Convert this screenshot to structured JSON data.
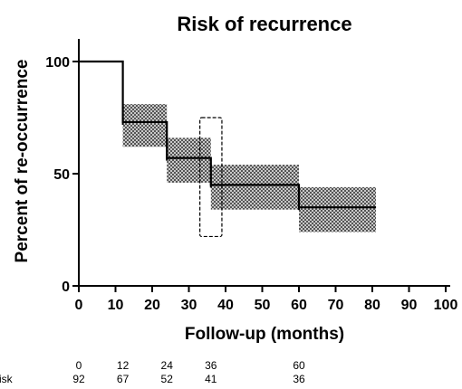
{
  "chart_data": {
    "type": "line",
    "title": "Risk of recurrence",
    "xlabel": "Follow-up (months)",
    "ylabel": "Percent of re-occurrence",
    "xlim": [
      0,
      100
    ],
    "ylim": [
      0,
      100
    ],
    "x_ticks": [
      0,
      10,
      20,
      30,
      40,
      50,
      60,
      70,
      80,
      90,
      100
    ],
    "y_ticks": [
      0,
      50,
      100
    ],
    "grid": false,
    "series": [
      {
        "style": "step",
        "color": "#000000",
        "steps": [
          {
            "x_start": 0,
            "x_end": 12,
            "y": 100
          },
          {
            "x_start": 12,
            "x_end": 24,
            "y": 73
          },
          {
            "x_start": 24,
            "x_end": 36,
            "y": 57
          },
          {
            "x_start": 36,
            "x_end": 60,
            "y": 45
          },
          {
            "x_start": 60,
            "x_end": 81,
            "y": 35
          }
        ]
      }
    ],
    "confidence_bands": [
      {
        "x_start": 12,
        "x_end": 24,
        "y_low": 62,
        "y_high": 81
      },
      {
        "x_start": 24,
        "x_end": 36,
        "y_low": 46,
        "y_high": 66
      },
      {
        "x_start": 36,
        "x_end": 60,
        "y_low": 34,
        "y_high": 54
      },
      {
        "x_start": 60,
        "x_end": 81,
        "y_low": 24,
        "y_high": 44
      }
    ],
    "highlight_box": {
      "x_start": 33,
      "x_end": 39,
      "y_low": 22,
      "y_high": 75,
      "style": "dashed"
    },
    "risk_table": {
      "row_label": "isk",
      "times": [
        "0",
        "12",
        "24",
        "36",
        "60"
      ],
      "counts": [
        "92",
        "67",
        "52",
        "41",
        "36"
      ]
    }
  }
}
